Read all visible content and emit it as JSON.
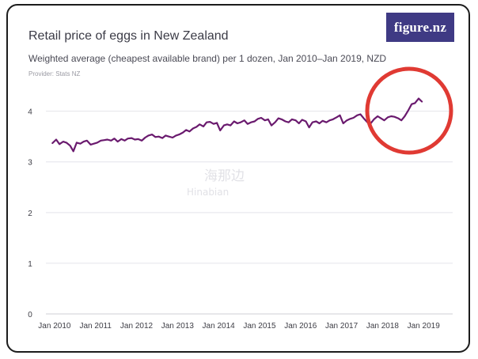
{
  "brand": {
    "logo_text": "figure.nz"
  },
  "watermark": {
    "line1": "海那边",
    "line2": "Hinabian"
  },
  "chart_data": {
    "type": "line",
    "title": "Retail price of eggs in New Zealand",
    "subtitle": "Weighted average (cheapest available brand) per 1 dozen, Jan 2010–Jan 2019, NZD",
    "provider": "Provider: Stats NZ",
    "xlabel": "",
    "ylabel": "",
    "ylim": [
      0,
      4.4
    ],
    "xlim": [
      2009.79,
      2019.71
    ],
    "grid": true,
    "legend": "none",
    "y_ticks": [
      0,
      1,
      2,
      3,
      4
    ],
    "x_ticks": [
      {
        "value": 2010,
        "label": "Jan 2010"
      },
      {
        "value": 2011,
        "label": "Jan 2011"
      },
      {
        "value": 2012,
        "label": "Jan 2012"
      },
      {
        "value": 2013,
        "label": "Jan 2013"
      },
      {
        "value": 2014,
        "label": "Jan 2014"
      },
      {
        "value": 2015,
        "label": "Jan 2015"
      },
      {
        "value": 2016,
        "label": "Jan 2016"
      },
      {
        "value": 2017,
        "label": "Jan 2017"
      },
      {
        "value": 2018,
        "label": "Jan 2018"
      },
      {
        "value": 2019,
        "label": "Jan 2019"
      }
    ],
    "series": [
      {
        "color": "#6a1a6e",
        "x": [
          2009.95,
          2010.04,
          2010.12,
          2010.21,
          2010.29,
          2010.38,
          2010.46,
          2010.54,
          2010.63,
          2010.71,
          2010.79,
          2010.88,
          2010.96,
          2011.04,
          2011.13,
          2011.21,
          2011.29,
          2011.38,
          2011.46,
          2011.54,
          2011.63,
          2011.71,
          2011.79,
          2011.88,
          2011.96,
          2012.04,
          2012.13,
          2012.21,
          2012.29,
          2012.38,
          2012.46,
          2012.54,
          2012.63,
          2012.71,
          2012.79,
          2012.88,
          2012.96,
          2013.04,
          2013.13,
          2013.21,
          2013.29,
          2013.38,
          2013.46,
          2013.54,
          2013.63,
          2013.71,
          2013.79,
          2013.88,
          2013.96,
          2014.04,
          2014.13,
          2014.21,
          2014.29,
          2014.38,
          2014.46,
          2014.54,
          2014.63,
          2014.71,
          2014.79,
          2014.88,
          2014.96,
          2015.04,
          2015.13,
          2015.21,
          2015.29,
          2015.38,
          2015.46,
          2015.54,
          2015.63,
          2015.71,
          2015.79,
          2015.88,
          2015.96,
          2016.04,
          2016.13,
          2016.21,
          2016.29,
          2016.38,
          2016.46,
          2016.54,
          2016.63,
          2016.71,
          2016.79,
          2016.88,
          2016.96,
          2017.04,
          2017.13,
          2017.21,
          2017.29,
          2017.38,
          2017.46,
          2017.54,
          2017.63,
          2017.71,
          2017.79,
          2017.88,
          2017.96,
          2018.04,
          2018.13,
          2018.21,
          2018.29,
          2018.38,
          2018.46,
          2018.54,
          2018.63,
          2018.71,
          2018.79,
          2018.88,
          2018.96
        ],
        "values": [
          3.37,
          3.44,
          3.35,
          3.4,
          3.38,
          3.32,
          3.21,
          3.38,
          3.36,
          3.4,
          3.42,
          3.34,
          3.36,
          3.38,
          3.42,
          3.43,
          3.44,
          3.42,
          3.46,
          3.4,
          3.45,
          3.42,
          3.46,
          3.47,
          3.44,
          3.45,
          3.42,
          3.48,
          3.52,
          3.54,
          3.49,
          3.5,
          3.47,
          3.52,
          3.5,
          3.48,
          3.52,
          3.54,
          3.58,
          3.63,
          3.6,
          3.66,
          3.69,
          3.74,
          3.7,
          3.78,
          3.79,
          3.75,
          3.77,
          3.62,
          3.72,
          3.74,
          3.72,
          3.8,
          3.76,
          3.78,
          3.82,
          3.75,
          3.78,
          3.8,
          3.85,
          3.87,
          3.82,
          3.84,
          3.72,
          3.78,
          3.86,
          3.84,
          3.8,
          3.78,
          3.84,
          3.82,
          3.76,
          3.83,
          3.8,
          3.68,
          3.78,
          3.8,
          3.76,
          3.81,
          3.78,
          3.82,
          3.84,
          3.88,
          3.92,
          3.76,
          3.82,
          3.85,
          3.87,
          3.92,
          3.94,
          3.86,
          3.78,
          3.76,
          3.84,
          3.9,
          3.86,
          3.82,
          3.88,
          3.9,
          3.89,
          3.86,
          3.82,
          3.9,
          4.02,
          4.14,
          4.16,
          4.25,
          4.19
        ]
      }
    ]
  },
  "annotation": {
    "shape": "circle",
    "color": "#e03a33"
  }
}
